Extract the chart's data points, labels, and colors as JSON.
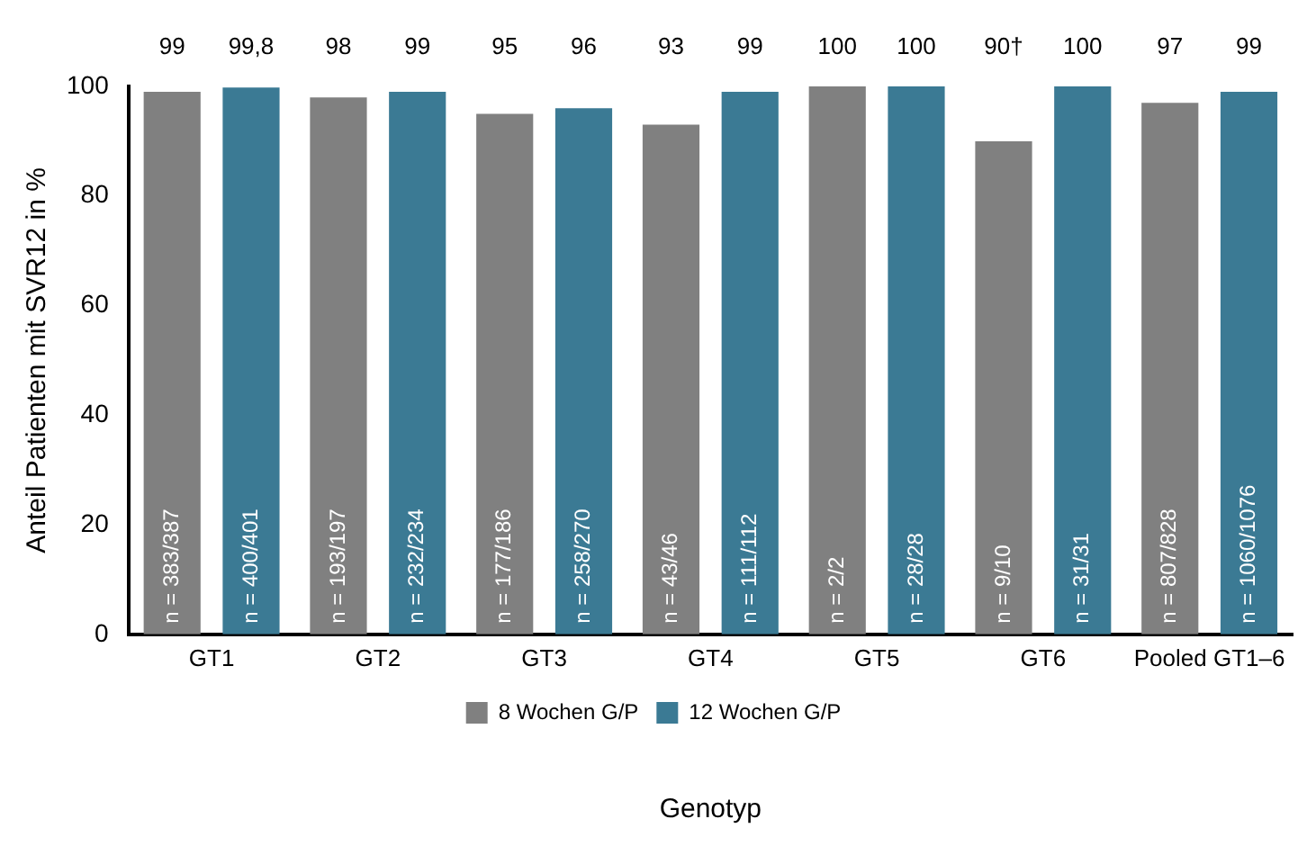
{
  "chart_data": {
    "type": "bar",
    "xlabel": "Genotyp",
    "ylabel": "Anteil Patienten mit SVR12 in %",
    "categories": [
      "GT1",
      "GT2",
      "GT3",
      "GT4",
      "GT5",
      "GT6",
      "Pooled GT1–6"
    ],
    "series": [
      {
        "name": "8 Wochen G/P",
        "color": "#808080",
        "values": [
          99,
          98,
          95,
          93,
          100,
          90,
          97
        ],
        "value_labels": [
          "99",
          "98",
          "95",
          "93",
          "100",
          "90†",
          "97"
        ]
      },
      {
        "name": "12 Wochen G/P",
        "color": "#3b7a94",
        "values": [
          99.8,
          99,
          96,
          99,
          100,
          100,
          99
        ],
        "value_labels": [
          "99,8",
          "99",
          "96",
          "99",
          "100",
          "100",
          "99"
        ]
      }
    ],
    "annotations": [
      "n = 383/387",
      "n = 400/401",
      "n = 193/197",
      "n = 232/234",
      "n = 177/186",
      "n = 258/270",
      "n = 43/46",
      "n = 111/112",
      "n = 2/2",
      "n = 28/28",
      "n = 9/10",
      "n = 31/31",
      "n = 807/828",
      "n = 1060/1076"
    ],
    "ylim": [
      0,
      100
    ],
    "yticks": [
      0,
      20,
      40,
      60,
      80,
      100
    ],
    "grid": false,
    "legend": "bottom"
  }
}
